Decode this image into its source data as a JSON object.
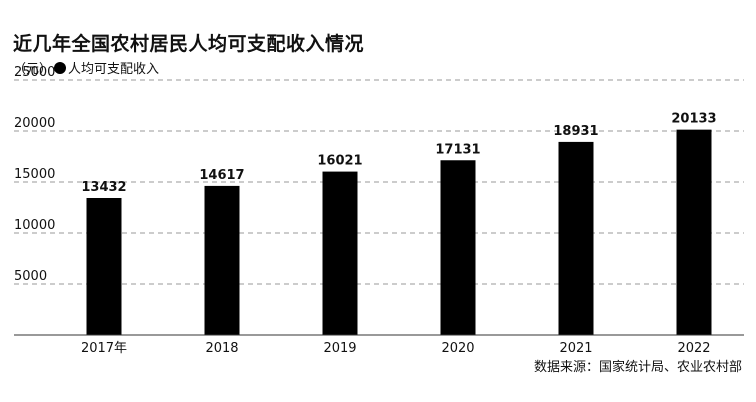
{
  "header": {
    "title": "近几年全国农村居民人均可支配收入情况",
    "unit": "（元）",
    "legend_label": "人均可支配收入"
  },
  "footer": {
    "source": "数据来源：国家统计局、农业农村部"
  },
  "colors": {
    "bar": "#000000",
    "grid": "#999999",
    "axis": "#333333"
  },
  "chart_data": {
    "type": "bar",
    "categories": [
      "2017年",
      "2018",
      "2019",
      "2020",
      "2021",
      "2022"
    ],
    "series": [
      {
        "name": "人均可支配收入",
        "values": [
          13432,
          14617,
          16021,
          17131,
          18931,
          20133
        ]
      }
    ],
    "data_labels": [
      "13432",
      "14617",
      "16021",
      "17131",
      "18931",
      "20133"
    ],
    "yticks": [
      "25000",
      "20000",
      "15000",
      "10000",
      "5000"
    ],
    "ytick_values": [
      25000,
      20000,
      15000,
      10000,
      5000
    ],
    "ylim": [
      0,
      25000
    ],
    "grid": "dashed-horizontal",
    "legend_position": "top-left"
  }
}
